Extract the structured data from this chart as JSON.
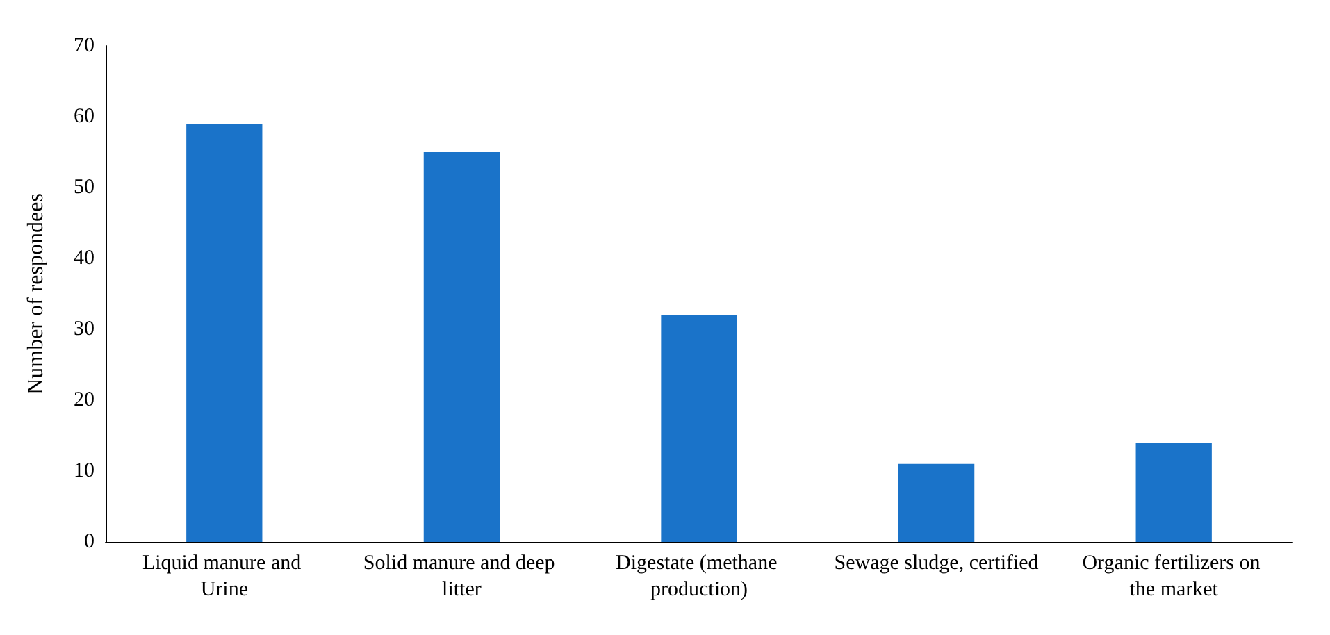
{
  "chart_data": {
    "type": "bar",
    "ylabel": "Number of respondees",
    "categories": [
      "Liquid manure and Urine",
      "Solid manure and deep litter",
      "Digestate (methane production)",
      "Sewage sludge, certified",
      "Organic fertilizers on the market"
    ],
    "values": [
      59,
      55,
      32,
      11,
      14
    ],
    "color": "#1a73c9",
    "ylim": [
      0,
      70
    ],
    "yticks": [
      0,
      10,
      20,
      30,
      40,
      50,
      60,
      70
    ],
    "grid": false
  }
}
